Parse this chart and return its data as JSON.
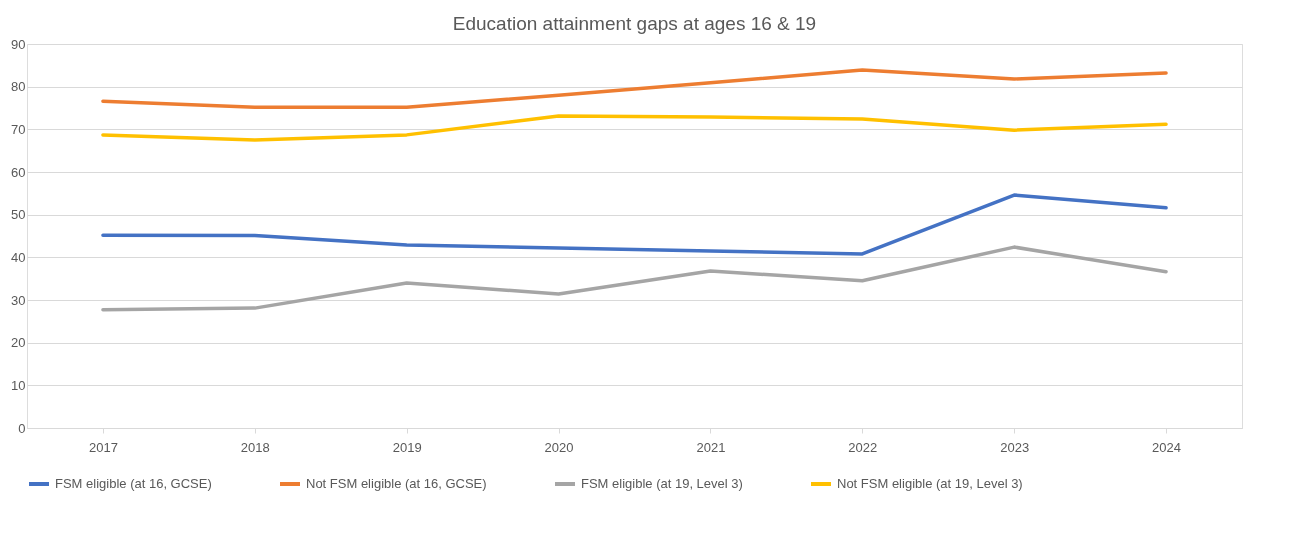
{
  "chart_data": {
    "type": "line",
    "title": "Education attainment gaps at ages 16 & 19",
    "categories": [
      "2017",
      "2018",
      "2019",
      "2020",
      "2021",
      "2022",
      "2023",
      "2024"
    ],
    "series": [
      {
        "name": "FSM eligible (at 16, GCSE)",
        "color": "#4472c4",
        "values": [
          45.2,
          45.1,
          42.9,
          42.2,
          41.5,
          40.8,
          54.6,
          51.6
        ]
      },
      {
        "name": "Not FSM eligible (at 16, GCSE)",
        "color": "#ed7d31",
        "values": [
          76.6,
          75.2,
          75.2,
          78.0,
          80.9,
          83.9,
          81.8,
          83.2
        ]
      },
      {
        "name": "FSM eligible (at 19, Level 3)",
        "color": "#a5a5a5",
        "values": [
          27.7,
          28.1,
          34.0,
          31.4,
          36.8,
          34.5,
          42.4,
          36.6
        ]
      },
      {
        "name": "Not FSM eligible (at 19, Level 3)",
        "color": "#ffc000",
        "values": [
          68.7,
          67.5,
          68.7,
          73.1,
          72.9,
          72.4,
          69.8,
          71.2
        ]
      }
    ],
    "ylim": [
      0,
      90
    ],
    "yticks": [
      0,
      10,
      20,
      30,
      40,
      50,
      60,
      70,
      80,
      90
    ],
    "grid": "y",
    "legend": "bottom",
    "marker": "none",
    "line_style": "solid"
  }
}
